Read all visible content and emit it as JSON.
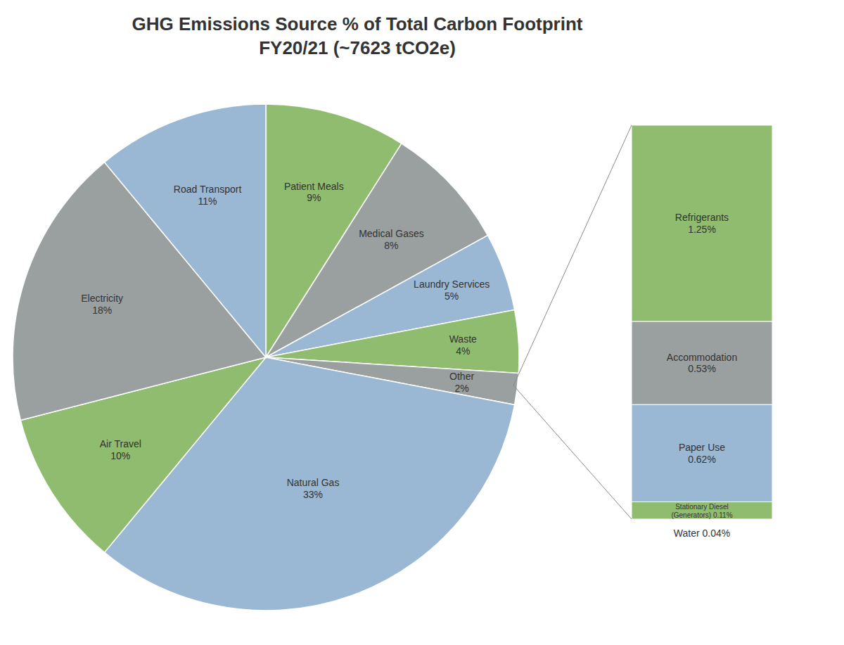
{
  "chart_data": [
    {
      "type": "pie",
      "title": "GHG Emissions Source % of Total Carbon Footprint\nFY20/21 (~7623 tCO2e)",
      "categories": [
        "Patient Meals",
        "Medical Gases",
        "Laundry Services",
        "Waste",
        "Other",
        "Natural Gas",
        "Air Travel",
        "Electricity",
        "Road Transport"
      ],
      "values": [
        9,
        8,
        5,
        4,
        2,
        33,
        10,
        18,
        11
      ],
      "colors": [
        "#8fbc6e",
        "#9aA0a0",
        "#9ab7d3",
        "#8fbc6e",
        "#9aA0a0",
        "#9ab7d3",
        "#8fbc6e",
        "#9aA0a0",
        "#9ab7d3"
      ],
      "value_labels": [
        "Patient Meals\n9%",
        "Medical Gases\n8%",
        "Laundry Services\n5%",
        "Waste\n4%",
        "Other\n2%",
        "Natural Gas\n33%",
        "Air Travel\n10%",
        "Electricity\n18%",
        "Road Transport\n11%"
      ]
    },
    {
      "type": "bar",
      "stacked": true,
      "tick_labels": false,
      "categories": [
        null
      ],
      "series": [
        {
          "name": "Stationary Diesel\n(Generators)",
          "color": "#8fbc6e",
          "values": [
            0.11
          ],
          "value_labels": [
            "Stationary Diesel\n(Generators) 0.11%"
          ]
        },
        {
          "name": "Paper Use",
          "color": "#9ab7d3",
          "values": [
            0.62
          ],
          "value_labels": [
            "Paper Use\n0.62%"
          ]
        },
        {
          "name": "Accommodation",
          "color": "#9aA0a0",
          "values": [
            0.53
          ],
          "value_labels": [
            "Accommodation\n0.53%"
          ]
        },
        {
          "name": "Refrigerants",
          "color": "#8fbc6e",
          "values": [
            1.25
          ],
          "value_labels": [
            "Refrigerants\n1.25%"
          ]
        }
      ],
      "annotations": [
        "Water 0.04%"
      ]
    }
  ]
}
